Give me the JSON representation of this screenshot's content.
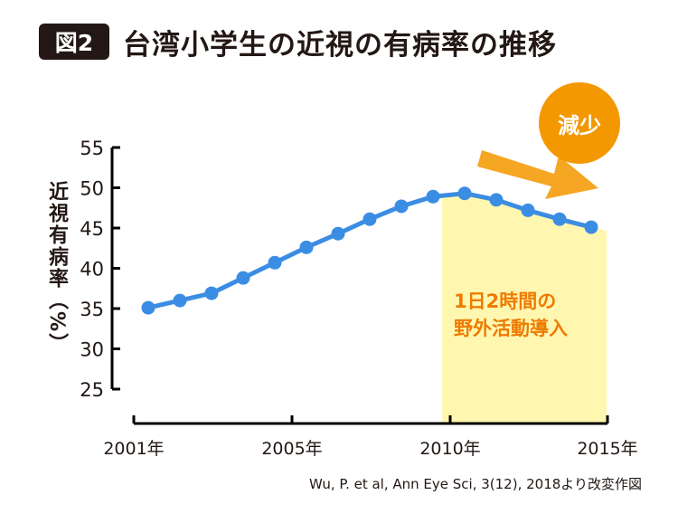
{
  "header": {
    "badge": "図2",
    "title": "台湾小学生の近視の有病率の推移"
  },
  "callout": {
    "decrease": "減少",
    "note_line1": "1日2時間の",
    "note_line2": "野外活動導入"
  },
  "source": "Wu, P. et al, Ann Eye Sci, 3(12), 2018より改変作図",
  "colors": {
    "line": "#3b8de3",
    "highlight": "#fff7b0",
    "accent": "#f39800",
    "arrow": "#f5a623",
    "note": "#ee7b00"
  },
  "chart_data": {
    "type": "line",
    "title": "台湾小学生の近視の有病率の推移",
    "xlabel": "",
    "ylabel": "近視有病率（%）",
    "x": [
      2001,
      2002,
      2003,
      2004,
      2005,
      2006,
      2007,
      2008,
      2009,
      2010,
      2011,
      2012,
      2013,
      2014,
      2015
    ],
    "series": [
      {
        "name": "近視有病率",
        "values": [
          35.1,
          36.0,
          36.9,
          38.8,
          40.7,
          42.6,
          44.3,
          46.1,
          47.7,
          48.9,
          49.3,
          48.5,
          47.2,
          46.1,
          45.1
        ]
      }
    ],
    "ylim": [
      25,
      55
    ],
    "yticks": [
      25,
      30,
      35,
      40,
      45,
      50,
      55
    ],
    "xtick_labels": [
      "2001年",
      "2005年",
      "2010年",
      "2015年"
    ],
    "highlight_from": 2010,
    "grid": false
  }
}
